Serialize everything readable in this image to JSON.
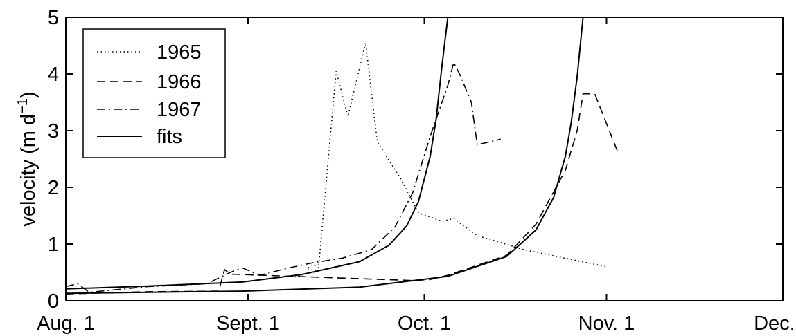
{
  "chart_data": {
    "type": "line",
    "title": "",
    "xlabel": "",
    "ylabel": "velocity (m d",
    "ylabel_superscript": "−1",
    "ylabel_suffix": ")",
    "x_axis": {
      "type": "date",
      "range": [
        "1 Aug",
        "1 Dec"
      ],
      "ticks": [
        {
          "date": "1 Aug",
          "label": "Aug. 1"
        },
        {
          "date": "1 Sep",
          "label": "Sept. 1"
        },
        {
          "date": "1 Oct",
          "label": "Oct. 1"
        },
        {
          "date": "1 Nov",
          "label": "Nov. 1"
        },
        {
          "date": "1 Dec",
          "label": "Dec. 1"
        }
      ]
    },
    "ylim": [
      0,
      5
    ],
    "yticks": [
      0,
      1,
      2,
      3,
      4,
      5
    ],
    "grid": false,
    "legend_position": "top-left",
    "legend": [
      {
        "label": "1965",
        "style": "dotted"
      },
      {
        "label": "1966",
        "style": "dashed"
      },
      {
        "label": "1967",
        "style": "dashdot"
      },
      {
        "label": "fits",
        "style": "solid"
      }
    ],
    "series": [
      {
        "name": "1965",
        "style": "dotted",
        "points": [
          {
            "x": "9 Sep",
            "y": 0.42
          },
          {
            "x": "12 Sep",
            "y": 0.5
          },
          {
            "x": "13 Sep",
            "y": 0.52
          },
          {
            "x": "11 Sep",
            "y": 0.56
          },
          {
            "x": "12 Sep",
            "y": 0.64
          },
          {
            "x": "13 Sep",
            "y": 0.58
          },
          {
            "x": "16 Sep",
            "y": 4.05
          },
          {
            "x": "18 Sep",
            "y": 3.25
          },
          {
            "x": "21 Sep",
            "y": 4.55
          },
          {
            "x": "23 Sep",
            "y": 2.8
          },
          {
            "x": "27 Sep",
            "y": 2.15
          },
          {
            "x": "30 Sep",
            "y": 1.55
          },
          {
            "x": "4 Oct",
            "y": 1.4
          },
          {
            "x": "6 Oct",
            "y": 1.45
          },
          {
            "x": "10 Oct",
            "y": 1.15
          },
          {
            "x": "18 Oct",
            "y": 0.9
          },
          {
            "x": "1 Nov",
            "y": 0.6
          }
        ]
      },
      {
        "name": "1966",
        "style": "dashed",
        "points": [
          {
            "x": "1 Aug",
            "y": 0.12
          },
          {
            "x": "15 Aug",
            "y": 0.16
          },
          {
            "x": "27 Aug",
            "y": 0.17
          },
          {
            "x": "28 Aug",
            "y": 0.55
          },
          {
            "x": "29 Aug",
            "y": 0.47
          },
          {
            "x": "1 Oct",
            "y": 0.35
          },
          {
            "x": "5 Oct",
            "y": 0.45
          },
          {
            "x": "15 Oct",
            "y": 0.8
          },
          {
            "x": "20 Oct",
            "y": 1.35
          },
          {
            "x": "25 Oct",
            "y": 2.3
          },
          {
            "x": "27 Oct",
            "y": 3.0
          },
          {
            "x": "28 Oct",
            "y": 3.65
          },
          {
            "x": "30 Oct",
            "y": 3.65
          },
          {
            "x": "3 Nov",
            "y": 2.6
          }
        ]
      },
      {
        "name": "1967",
        "style": "dashdot",
        "points": [
          {
            "x": "1 Aug",
            "y": 0.25
          },
          {
            "x": "3 Aug",
            "y": 0.3
          },
          {
            "x": "5 Aug",
            "y": 0.15
          },
          {
            "x": "15 Aug",
            "y": 0.25
          },
          {
            "x": "25 Aug",
            "y": 0.3
          },
          {
            "x": "29 Aug",
            "y": 0.5
          },
          {
            "x": "31 Aug",
            "y": 0.58
          },
          {
            "x": "3 Sep",
            "y": 0.45
          },
          {
            "x": "8 Sep",
            "y": 0.58
          },
          {
            "x": "12 Sep",
            "y": 0.67
          },
          {
            "x": "17 Sep",
            "y": 0.75
          },
          {
            "x": "22 Sep",
            "y": 0.9
          },
          {
            "x": "26 Sep",
            "y": 1.3
          },
          {
            "x": "29 Sep",
            "y": 1.9
          },
          {
            "x": "2 Oct",
            "y": 2.9
          },
          {
            "x": "5 Oct",
            "y": 3.8
          },
          {
            "x": "6 Oct",
            "y": 4.2
          },
          {
            "x": "7 Oct",
            "y": 4.0
          },
          {
            "x": "9 Oct",
            "y": 3.5
          },
          {
            "x": "10 Oct",
            "y": 2.75
          },
          {
            "x": "12 Oct",
            "y": 2.8
          },
          {
            "x": "14 Oct",
            "y": 2.85
          }
        ]
      },
      {
        "name": "fits",
        "style": "solid",
        "points": [
          {
            "x": "1 Aug",
            "y": 0.21
          },
          {
            "x": "15 Aug",
            "y": 0.26
          },
          {
            "x": "31 Aug",
            "y": 0.33
          },
          {
            "x": "10 Sep",
            "y": 0.46
          },
          {
            "x": "20 Sep",
            "y": 0.69
          },
          {
            "x": "25 Sep",
            "y": 0.98
          },
          {
            "x": "28 Sep",
            "y": 1.32
          },
          {
            "x": "30 Sep",
            "y": 1.75
          },
          {
            "x": "2 Oct",
            "y": 2.55
          },
          {
            "x": "3 Oct",
            "y": 3.2
          },
          {
            "x": "4 Oct",
            "y": 4.15
          },
          {
            "x": "5 Oct",
            "y": 5.0
          }
        ]
      },
      {
        "name": "fits",
        "style": "solid",
        "points": [
          {
            "x": "1 Aug",
            "y": 0.13
          },
          {
            "x": "31 Aug",
            "y": 0.17
          },
          {
            "x": "20 Sep",
            "y": 0.24
          },
          {
            "x": "5 Oct",
            "y": 0.43
          },
          {
            "x": "15 Oct",
            "y": 0.78
          },
          {
            "x": "20 Oct",
            "y": 1.25
          },
          {
            "x": "23 Oct",
            "y": 1.82
          },
          {
            "x": "25 Oct",
            "y": 2.55
          },
          {
            "x": "26 Oct",
            "y": 3.15
          },
          {
            "x": "27 Oct",
            "y": 3.95
          },
          {
            "x": "28 Oct",
            "y": 5.0
          }
        ]
      }
    ]
  }
}
